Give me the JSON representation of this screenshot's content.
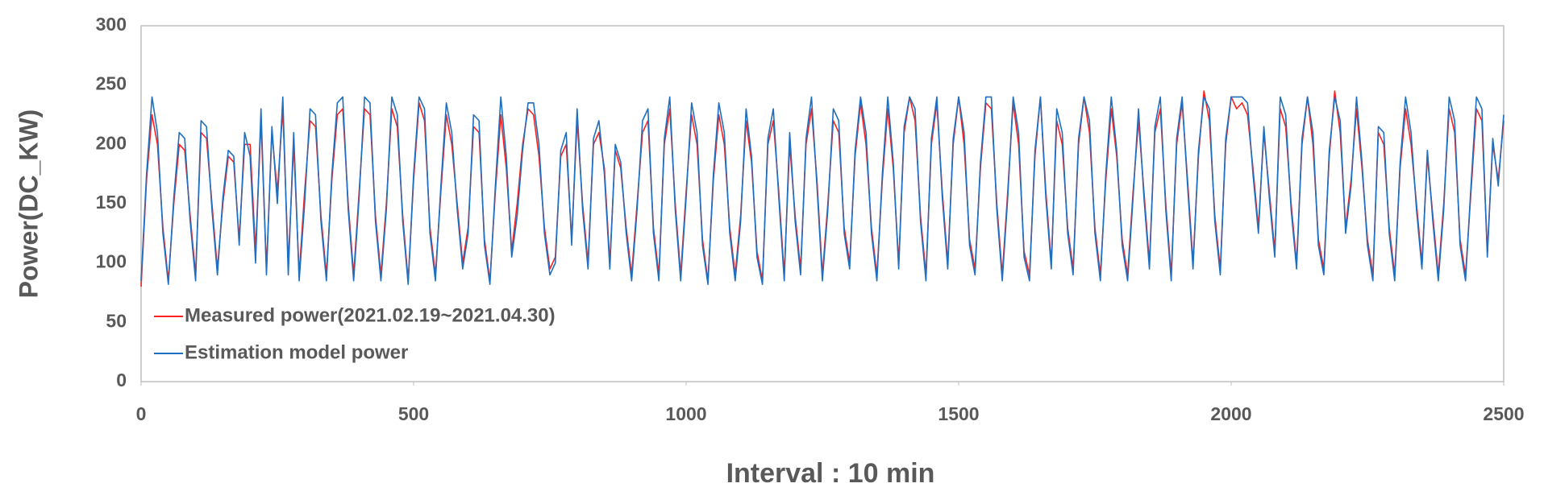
{
  "chart_data": {
    "type": "line",
    "x_label": "Interval : 10 min",
    "y_label": "Power(DC_KW)",
    "xlim": [
      0,
      2500
    ],
    "xticks": [
      0,
      500,
      1000,
      1500,
      2000,
      2500
    ],
    "ylim": [
      0,
      300
    ],
    "yticks": [
      0,
      50,
      100,
      150,
      200,
      250,
      300
    ],
    "grid": false,
    "legend": "lower left",
    "x": [
      0,
      10,
      20,
      30,
      40,
      50,
      60,
      70,
      80,
      90,
      100,
      110,
      120,
      130,
      140,
      150,
      160,
      170,
      180,
      190,
      200,
      210,
      220,
      230,
      240,
      250,
      260,
      270,
      280,
      290,
      300,
      310,
      320,
      330,
      340,
      350,
      360,
      370,
      380,
      390,
      400,
      410,
      420,
      430,
      440,
      450,
      460,
      470,
      480,
      490,
      500,
      510,
      520,
      530,
      540,
      550,
      560,
      570,
      580,
      590,
      600,
      610,
      620,
      630,
      640,
      650,
      660,
      670,
      680,
      690,
      700,
      710,
      720,
      730,
      740,
      750,
      760,
      770,
      780,
      790,
      800,
      810,
      820,
      830,
      840,
      850,
      860,
      870,
      880,
      890,
      900,
      910,
      920,
      930,
      940,
      950,
      960,
      970,
      980,
      990,
      1000,
      1010,
      1020,
      1030,
      1040,
      1050,
      1060,
      1070,
      1080,
      1090,
      1100,
      1110,
      1120,
      1130,
      1140,
      1150,
      1160,
      1170,
      1180,
      1190,
      1200,
      1210,
      1220,
      1230,
      1240,
      1250,
      1260,
      1270,
      1280,
      1290,
      1300,
      1310,
      1320,
      1330,
      1340,
      1350,
      1360,
      1370,
      1380,
      1390,
      1400,
      1410,
      1420,
      1430,
      1440,
      1450,
      1460,
      1470,
      1480,
      1490,
      1500,
      1510,
      1520,
      1530,
      1540,
      1550,
      1560,
      1570,
      1580,
      1590,
      1600,
      1610,
      1620,
      1630,
      1640,
      1650,
      1660,
      1670,
      1680,
      1690,
      1700,
      1710,
      1720,
      1730,
      1740,
      1750,
      1760,
      1770,
      1780,
      1790,
      1800,
      1810,
      1820,
      1830,
      1840,
      1850,
      1860,
      1870,
      1880,
      1890,
      1900,
      1910,
      1920,
      1930,
      1940,
      1950,
      1960,
      1970,
      1980,
      1990,
      2000,
      2010,
      2020,
      2030,
      2040,
      2050,
      2060,
      2070,
      2080,
      2090,
      2100,
      2110,
      2120,
      2130,
      2140,
      2150,
      2160,
      2170,
      2180,
      2190,
      2200,
      2210,
      2220,
      2230,
      2240,
      2250,
      2260,
      2270,
      2280,
      2290,
      2300,
      2310,
      2320,
      2330,
      2340,
      2350,
      2360,
      2370,
      2380,
      2390,
      2400,
      2410,
      2420,
      2430,
      2440,
      2450,
      2460,
      2470,
      2480,
      2490,
      2500
    ],
    "series": [
      {
        "name": "Measured power(2021.02.19~2021.04.30)",
        "color": "#ff2020",
        "values": [
          80,
          170,
          225,
          200,
          130,
          85,
          150,
          200,
          195,
          140,
          90,
          210,
          205,
          150,
          95,
          150,
          190,
          185,
          120,
          200,
          200,
          110,
          220,
          95,
          210,
          160,
          230,
          100,
          200,
          90,
          160,
          220,
          215,
          140,
          90,
          170,
          225,
          230,
          150,
          90,
          160,
          230,
          225,
          140,
          90,
          150,
          230,
          215,
          140,
          85,
          170,
          235,
          220,
          130,
          90,
          160,
          225,
          200,
          150,
          100,
          130,
          215,
          210,
          120,
          85,
          160,
          225,
          180,
          110,
          150,
          200,
          230,
          225,
          190,
          130,
          95,
          105,
          190,
          200,
          120,
          220,
          150,
          100,
          200,
          210,
          180,
          100,
          195,
          180,
          130,
          90,
          150,
          210,
          220,
          130,
          90,
          200,
          230,
          150,
          90,
          160,
          225,
          200,
          120,
          85,
          170,
          225,
          200,
          130,
          90,
          140,
          220,
          185,
          110,
          85,
          200,
          220,
          160,
          90,
          200,
          140,
          95,
          200,
          230,
          170,
          90,
          150,
          220,
          210,
          130,
          100,
          190,
          235,
          200,
          130,
          90,
          170,
          230,
          180,
          100,
          210,
          240,
          220,
          140,
          90,
          200,
          235,
          160,
          100,
          200,
          240,
          200,
          120,
          95,
          180,
          235,
          230,
          150,
          90,
          160,
          235,
          200,
          110,
          90,
          190,
          240,
          160,
          100,
          220,
          200,
          130,
          95,
          200,
          240,
          210,
          130,
          90,
          170,
          230,
          190,
          120,
          90,
          160,
          220,
          160,
          100,
          210,
          230,
          150,
          90,
          200,
          235,
          170,
          100,
          190,
          245,
          220,
          140,
          95,
          200,
          240,
          230,
          235,
          225,
          180,
          130,
          210,
          160,
          110,
          230,
          215,
          150,
          100,
          200,
          240,
          200,
          120,
          95,
          190,
          245,
          210,
          130,
          170,
          230,
          180,
          120,
          90,
          210,
          200,
          130,
          90,
          180,
          230,
          200,
          150,
          100,
          190,
          140,
          90,
          150,
          230,
          210,
          120,
          90,
          160,
          230,
          220,
          110,
          200,
          170,
          220
        ]
      },
      {
        "name": "Estimation model power",
        "color": "#1f6fc0",
        "values": [
          85,
          175,
          240,
          210,
          125,
          82,
          155,
          210,
          205,
          135,
          85,
          220,
          215,
          145,
          90,
          155,
          195,
          190,
          115,
          210,
          190,
          100,
          230,
          90,
          215,
          150,
          240,
          90,
          210,
          85,
          150,
          230,
          225,
          135,
          85,
          175,
          235,
          240,
          145,
          85,
          155,
          240,
          235,
          135,
          85,
          145,
          240,
          225,
          135,
          82,
          175,
          240,
          230,
          125,
          85,
          165,
          235,
          210,
          145,
          95,
          125,
          225,
          220,
          115,
          82,
          165,
          240,
          190,
          105,
          140,
          195,
          235,
          235,
          200,
          125,
          90,
          100,
          195,
          210,
          115,
          230,
          145,
          95,
          205,
          220,
          175,
          95,
          200,
          185,
          125,
          85,
          145,
          220,
          230,
          125,
          85,
          205,
          240,
          145,
          85,
          155,
          235,
          210,
          115,
          82,
          175,
          235,
          210,
          125,
          85,
          135,
          230,
          190,
          105,
          82,
          205,
          230,
          155,
          85,
          210,
          135,
          90,
          205,
          240,
          165,
          85,
          145,
          230,
          220,
          125,
          95,
          195,
          240,
          210,
          125,
          85,
          175,
          240,
          185,
          95,
          215,
          240,
          230,
          135,
          85,
          205,
          240,
          155,
          95,
          205,
          240,
          210,
          115,
          90,
          185,
          240,
          240,
          145,
          85,
          155,
          240,
          210,
          105,
          85,
          195,
          240,
          155,
          95,
          230,
          210,
          125,
          90,
          205,
          240,
          220,
          125,
          85,
          175,
          240,
          195,
          115,
          85,
          155,
          230,
          155,
          95,
          215,
          240,
          145,
          85,
          205,
          240,
          165,
          95,
          195,
          240,
          230,
          135,
          90,
          205,
          240,
          240,
          240,
          235,
          175,
          125,
          215,
          155,
          105,
          240,
          225,
          145,
          95,
          205,
          240,
          210,
          115,
          90,
          195,
          240,
          220,
          125,
          165,
          240,
          185,
          115,
          85,
          215,
          210,
          125,
          85,
          185,
          240,
          210,
          145,
          95,
          195,
          135,
          85,
          145,
          240,
          220,
          115,
          85,
          165,
          240,
          230,
          105,
          205,
          165,
          225
        ]
      }
    ]
  }
}
